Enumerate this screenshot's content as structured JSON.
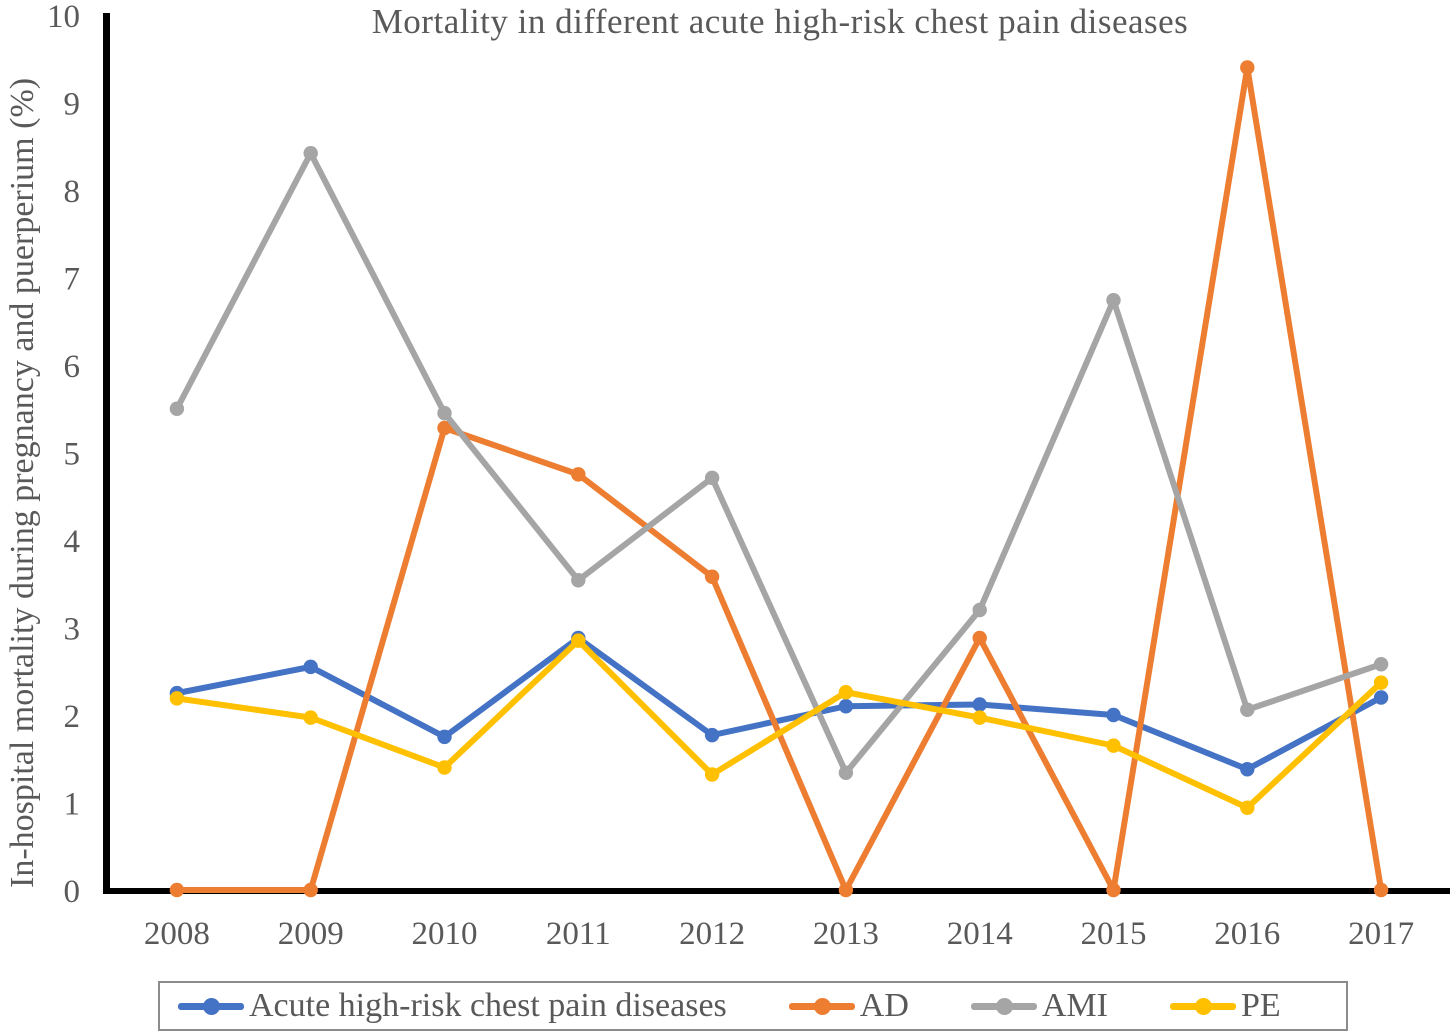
{
  "chart_data": {
    "type": "line",
    "title": "Mortality in different acute high-risk chest pain diseases",
    "xlabel": "",
    "ylabel": "In-hospital mortality during pregnancy and puerperium (%)",
    "categories": [
      "2008",
      "2009",
      "2010",
      "2011",
      "2012",
      "2013",
      "2014",
      "2015",
      "2016",
      "2017"
    ],
    "ylim": [
      0,
      10
    ],
    "yticks": [
      0,
      1,
      2,
      3,
      4,
      5,
      6,
      7,
      8,
      9,
      10
    ],
    "grid": false,
    "legend_position": "bottom",
    "series": [
      {
        "name": "Acute high-risk chest pain diseases",
        "color": "#4472C4",
        "values": [
          2.25,
          2.55,
          1.75,
          2.88,
          1.77,
          2.1,
          2.12,
          2.0,
          1.38,
          2.2
        ]
      },
      {
        "name": "AD",
        "color": "#ED7D31",
        "values": [
          0,
          0,
          5.28,
          4.75,
          3.58,
          0,
          2.88,
          0,
          9.4,
          0
        ]
      },
      {
        "name": "AMI",
        "color": "#A5A5A5",
        "values": [
          5.5,
          8.42,
          5.45,
          3.54,
          4.71,
          1.34,
          3.2,
          6.74,
          2.06,
          2.58
        ]
      },
      {
        "name": "PE",
        "color": "#FFC000",
        "values": [
          2.19,
          1.97,
          1.4,
          2.85,
          1.32,
          2.26,
          1.97,
          1.65,
          0.94,
          2.37
        ]
      }
    ],
    "colors": {
      "axis": "#000000",
      "text": "#595959",
      "legend_border": "#8c8c8c"
    }
  }
}
